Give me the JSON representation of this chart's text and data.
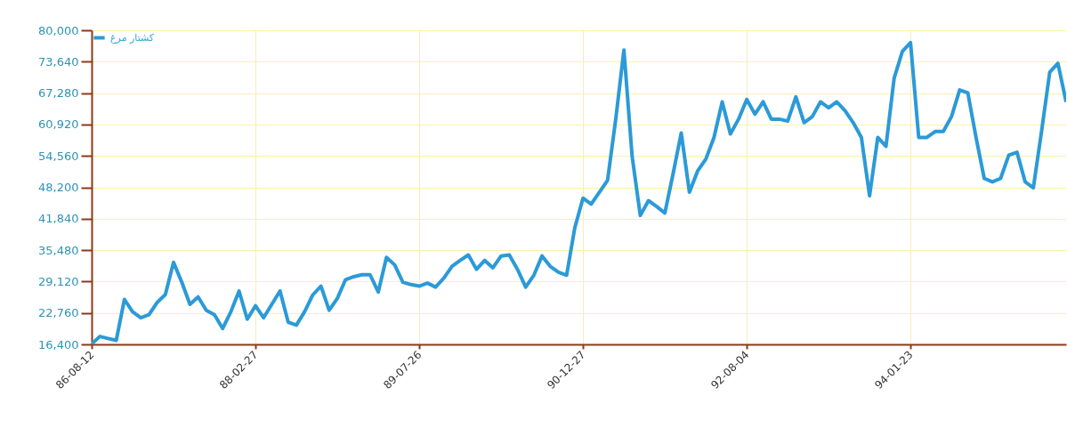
{
  "chart_data": {
    "type": "line",
    "categories": [
      "86-08-12",
      null,
      null,
      null,
      null,
      null,
      null,
      null,
      null,
      null,
      null,
      null,
      null,
      null,
      null,
      null,
      null,
      null,
      null,
      null,
      "88-02-27",
      null,
      null,
      null,
      null,
      null,
      null,
      null,
      null,
      null,
      null,
      null,
      null,
      null,
      null,
      null,
      null,
      null,
      null,
      null,
      "89-07-26",
      null,
      null,
      null,
      null,
      null,
      null,
      null,
      null,
      null,
      null,
      null,
      null,
      null,
      null,
      null,
      null,
      null,
      null,
      null,
      "90-12-27",
      null,
      null,
      null,
      null,
      null,
      null,
      null,
      null,
      null,
      null,
      null,
      null,
      null,
      null,
      null,
      null,
      null,
      null,
      null,
      "92-08-04",
      null,
      null,
      null,
      null,
      null,
      null,
      null,
      null,
      null,
      null,
      null,
      null,
      null,
      null,
      null,
      null,
      null,
      null,
      null,
      "94-01-23",
      null,
      null,
      null,
      null,
      null,
      null,
      null,
      null,
      null,
      null,
      null,
      null,
      null,
      null,
      null,
      null,
      null,
      null,
      null
    ],
    "series": [
      {
        "name": "کشتار مرغ",
        "color": "#2b9ad8",
        "values": [
          16500,
          18000,
          17600,
          17200,
          25500,
          23000,
          21800,
          22400,
          24900,
          26500,
          33000,
          29000,
          24500,
          26000,
          23300,
          22400,
          19600,
          23000,
          27200,
          21500,
          24200,
          21800,
          24500,
          27200,
          20900,
          20300,
          23000,
          26400,
          28200,
          23300,
          25700,
          29500,
          30100,
          30500,
          30500,
          27000,
          34000,
          32500,
          29000,
          28500,
          28200,
          28800,
          28000,
          29800,
          32200,
          33400,
          34500,
          31600,
          33400,
          31900,
          34300,
          34500,
          31600,
          28000,
          30400,
          34300,
          32200,
          31000,
          30400,
          40000,
          46000,
          44800,
          47200,
          49600,
          62000,
          76000,
          54500,
          42500,
          45500,
          44300,
          43000,
          50900,
          59200,
          47200,
          51500,
          53900,
          58300,
          65500,
          59000,
          62000,
          66000,
          63000,
          65500,
          62000,
          62000,
          61600,
          66500,
          61300,
          62500,
          65500,
          64300,
          65500,
          63700,
          61300,
          58300,
          46500,
          58300,
          56500,
          70300,
          75700,
          77500,
          58300,
          58300,
          59500,
          59500,
          62500,
          67900,
          67300,
          58300,
          50000,
          49300,
          50000,
          54700,
          55300,
          49300,
          48100,
          59500,
          71500,
          73300,
          65500
        ]
      }
    ],
    "ylim": [
      16400,
      80000
    ],
    "yticks": [
      {
        "value": 16400,
        "label": "16,400"
      },
      {
        "value": 22760,
        "label": "22,760"
      },
      {
        "value": 29120,
        "label": "29,120"
      },
      {
        "value": 35480,
        "label": "35,480"
      },
      {
        "value": 41840,
        "label": "41,840"
      },
      {
        "value": 48200,
        "label": "48,200"
      },
      {
        "value": 54560,
        "label": "54,560"
      },
      {
        "value": 60920,
        "label": "60,920"
      },
      {
        "value": 67280,
        "label": "67,280"
      },
      {
        "value": 73640,
        "label": "73,640"
      },
      {
        "value": 80000,
        "label": "80,000"
      }
    ],
    "grid": true,
    "legend": "top left",
    "marker": "none",
    "line_style": "solid"
  }
}
